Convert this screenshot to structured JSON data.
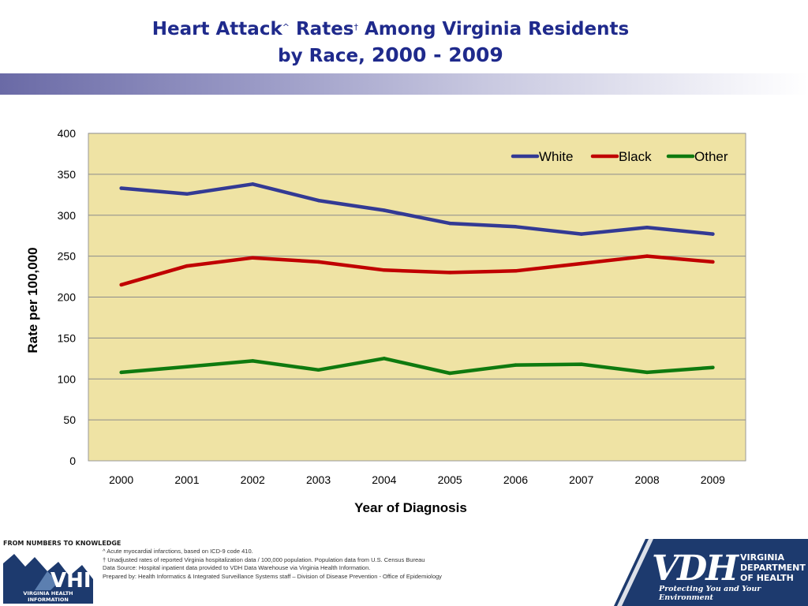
{
  "header": {
    "title_part1": "Heart Attack",
    "title_sup1": "^",
    "title_part2": " Rates",
    "title_sup2": "†",
    "title_part3": " Among Virginia Residents",
    "title_line2a": "by Race, ",
    "title_line2b": "2000 - 2009"
  },
  "colors": {
    "plot_bg": "#efe3a4",
    "white_series": "#333a94",
    "black_series": "#c00000",
    "other_series": "#0f7a0f",
    "title": "#1f2a8c",
    "footer_navy": "#1d3a6e"
  },
  "chart_data": {
    "type": "line",
    "title": "",
    "xlabel": "Year of Diagnosis",
    "ylabel": "Rate per 100,000",
    "ylim": [
      0,
      400
    ],
    "yticks": [
      0,
      50,
      100,
      150,
      200,
      250,
      300,
      350,
      400
    ],
    "categories": [
      "2000",
      "2001",
      "2002",
      "2003",
      "2004",
      "2005",
      "2006",
      "2007",
      "2008",
      "2009"
    ],
    "grid": true,
    "legend_position": "top-right",
    "series": [
      {
        "name": "White",
        "values": [
          333,
          326,
          338,
          318,
          306,
          290,
          286,
          277,
          285,
          277
        ]
      },
      {
        "name": "Black",
        "values": [
          215,
          238,
          248,
          243,
          233,
          230,
          232,
          241,
          250,
          243
        ]
      },
      {
        "name": "Other",
        "values": [
          108,
          115,
          122,
          111,
          125,
          107,
          117,
          118,
          108,
          114
        ]
      }
    ]
  },
  "footer": {
    "note1": "^  Acute myocardial infarctions, based on ICD-9 code 410.",
    "note2": "† Unadjusted rates of reported Virginia hospitalization data / 100,000 population.  Population data from U.S. Census Bureau",
    "note3": "Data Source: Hospital inpatient data provided to VDH Data Warehouse via Virginia Health Information.",
    "note4": "Prepared by:  Health Informatics & Integrated Surveillance Systems staff – Division of Disease Prevention - Office of Epidemiology",
    "vhi_tagline": "FROM NUMBERS TO KNOWLEDGE",
    "vhi_mark": "VHI",
    "vhi_name": "VIRGINIA HEALTH INFORMATION",
    "vdh_mark": "VDH",
    "vdh_name_1": "VIRGINIA",
    "vdh_name_2": "DEPARTMENT",
    "vdh_name_3": "OF HEALTH",
    "vdh_tagline": "Protecting You and Your Environment"
  }
}
